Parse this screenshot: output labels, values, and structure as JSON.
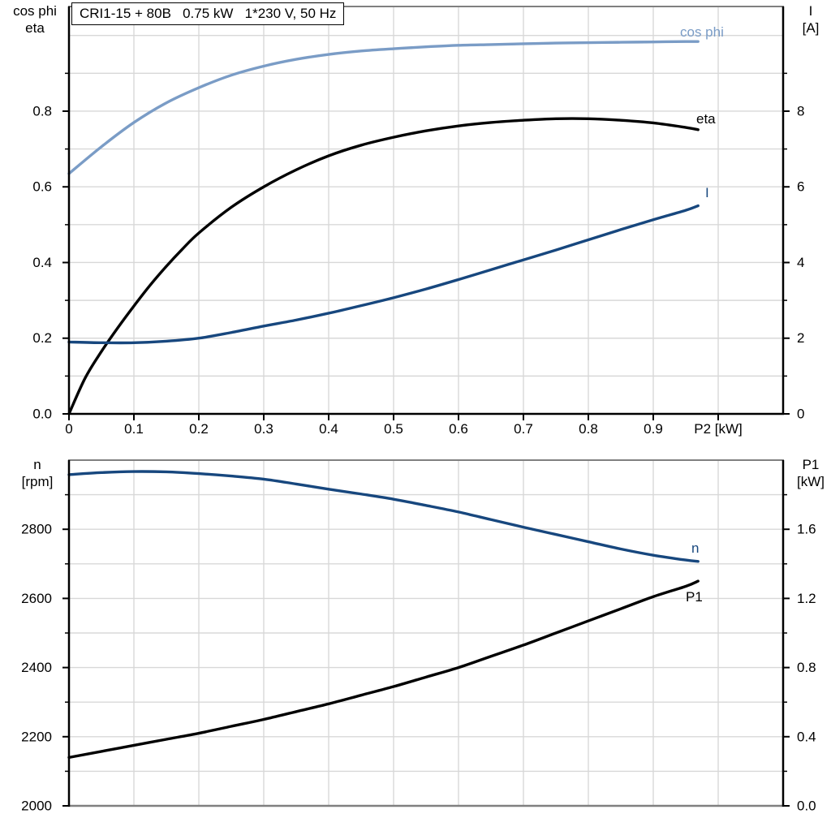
{
  "title_box": {
    "text": "CRI1-15 + 80B   0.75 kW   1*230 V, 50 Hz"
  },
  "colors": {
    "black": "#000000",
    "light_blue": "#7a9cc6",
    "dark_blue": "#17477e",
    "grid": "#d8d8d8",
    "frame_gray": "#808080",
    "background": "#ffffff"
  },
  "headers": {
    "top_left_line1": "cos phi",
    "top_left_line2": "eta",
    "top_right_line1": "I",
    "top_right_line2": "[A]",
    "bottom_left_line1": "n",
    "bottom_left_line2": "[rpm]",
    "bottom_right_line1": "P1",
    "bottom_right_line2": "[kW]"
  },
  "chart_data": [
    {
      "type": "line",
      "title": "CRI1-15 + 80B   0.75 kW   1*230 V, 50 Hz",
      "xlabel": "P2 [kW]",
      "x_axis": {
        "range": [
          0,
          1.1
        ],
        "ticks": [
          0,
          0.1,
          0.2,
          0.3,
          0.4,
          0.5,
          0.6,
          0.7,
          0.8,
          0.9,
          1.0
        ],
        "tick_labels": [
          "0",
          "0.1",
          "0.2",
          "0.3",
          "0.4",
          "0.5",
          "0.6",
          "0.7",
          "0.8",
          "0.9",
          "P2 [kW]"
        ],
        "grid_values": [
          0.1,
          0.2,
          0.3,
          0.4,
          0.5,
          0.6,
          0.7,
          0.8,
          0.9,
          1.0
        ]
      },
      "left_axis": {
        "title": [
          "cos phi",
          "eta"
        ],
        "range": [
          0,
          1.0766
        ],
        "major_ticks": [
          0,
          0.2,
          0.4,
          0.6,
          0.8
        ],
        "tick_labels": [
          "0.0",
          "0.2",
          "0.4",
          "0.6",
          "0.8"
        ],
        "minor_ticks": [
          0.1,
          0.3,
          0.5,
          0.7,
          0.9
        ],
        "grid_values": [
          0.1,
          0.2,
          0.3,
          0.4,
          0.5,
          0.6,
          0.7,
          0.8,
          0.9,
          1.0
        ]
      },
      "right_axis": {
        "title": [
          "I",
          "[A]"
        ],
        "range": [
          0,
          10.766
        ],
        "major_ticks": [
          0,
          2,
          4,
          6,
          8
        ],
        "tick_labels": [
          "0",
          "2",
          "4",
          "6",
          "8"
        ],
        "minor_ticks": [
          1,
          3,
          5,
          7,
          9
        ]
      },
      "series": [
        {
          "name": "cos phi",
          "axis": "left",
          "color": "#7a9cc6",
          "label": {
            "text": "cos phi",
            "x": 838,
            "y": 45,
            "anchor": "start"
          },
          "points": [
            [
              0,
              0.635
            ],
            [
              0.05,
              0.706
            ],
            [
              0.1,
              0.77
            ],
            [
              0.15,
              0.822
            ],
            [
              0.2,
              0.862
            ],
            [
              0.25,
              0.895
            ],
            [
              0.3,
              0.919
            ],
            [
              0.35,
              0.937
            ],
            [
              0.4,
              0.95
            ],
            [
              0.45,
              0.959
            ],
            [
              0.5,
              0.965
            ],
            [
              0.55,
              0.97
            ],
            [
              0.6,
              0.974
            ],
            [
              0.65,
              0.976
            ],
            [
              0.7,
              0.978
            ],
            [
              0.75,
              0.98
            ],
            [
              0.8,
              0.981
            ],
            [
              0.85,
              0.982
            ],
            [
              0.9,
              0.983
            ],
            [
              0.95,
              0.984
            ],
            [
              0.969,
              0.984
            ]
          ]
        },
        {
          "name": "eta",
          "axis": "left",
          "color": "#000000",
          "label": {
            "text": "eta",
            "x": 858,
            "y": 152,
            "anchor": "start"
          },
          "points": [
            [
              0,
              0.0
            ],
            [
              0.025,
              0.095
            ],
            [
              0.05,
              0.165
            ],
            [
              0.075,
              0.227
            ],
            [
              0.1,
              0.285
            ],
            [
              0.125,
              0.34
            ],
            [
              0.15,
              0.39
            ],
            [
              0.175,
              0.436
            ],
            [
              0.2,
              0.478
            ],
            [
              0.25,
              0.546
            ],
            [
              0.3,
              0.6
            ],
            [
              0.35,
              0.645
            ],
            [
              0.4,
              0.682
            ],
            [
              0.45,
              0.71
            ],
            [
              0.5,
              0.731
            ],
            [
              0.55,
              0.748
            ],
            [
              0.6,
              0.761
            ],
            [
              0.65,
              0.77
            ],
            [
              0.7,
              0.776
            ],
            [
              0.75,
              0.78
            ],
            [
              0.8,
              0.78
            ],
            [
              0.85,
              0.776
            ],
            [
              0.9,
              0.769
            ],
            [
              0.95,
              0.757
            ],
            [
              0.969,
              0.751
            ]
          ]
        },
        {
          "name": "I",
          "axis": "right",
          "color": "#17477e",
          "label": {
            "text": "I",
            "x": 869,
            "y": 243,
            "anchor": "start"
          },
          "points": [
            [
              0,
              1.9
            ],
            [
              0.05,
              1.88
            ],
            [
              0.1,
              1.88
            ],
            [
              0.15,
              1.92
            ],
            [
              0.2,
              2.0
            ],
            [
              0.25,
              2.15
            ],
            [
              0.3,
              2.32
            ],
            [
              0.35,
              2.48
            ],
            [
              0.4,
              2.66
            ],
            [
              0.45,
              2.86
            ],
            [
              0.5,
              3.07
            ],
            [
              0.55,
              3.3
            ],
            [
              0.6,
              3.55
            ],
            [
              0.65,
              3.81
            ],
            [
              0.7,
              4.07
            ],
            [
              0.75,
              4.33
            ],
            [
              0.8,
              4.6
            ],
            [
              0.85,
              4.87
            ],
            [
              0.9,
              5.13
            ],
            [
              0.95,
              5.38
            ],
            [
              0.969,
              5.5
            ]
          ]
        }
      ]
    },
    {
      "type": "line",
      "title": "",
      "xlabel": "",
      "x_axis": {
        "range": [
          0,
          1.1
        ],
        "ticks": [],
        "tick_labels": [],
        "grid_values": [
          0.1,
          0.2,
          0.3,
          0.4,
          0.5,
          0.6,
          0.7,
          0.8,
          0.9,
          1.0
        ]
      },
      "left_axis": {
        "title": [
          "n",
          "[rpm]"
        ],
        "range": [
          2000,
          3000
        ],
        "major_ticks": [
          2000,
          2200,
          2400,
          2600,
          2800
        ],
        "tick_labels": [
          "2000",
          "2200",
          "2400",
          "2600",
          "2800"
        ],
        "minor_ticks": [
          2100,
          2300,
          2500,
          2700,
          2900
        ],
        "grid_values": [
          2100,
          2200,
          2300,
          2400,
          2500,
          2600,
          2700,
          2800,
          2900
        ]
      },
      "right_axis": {
        "title": [
          "P1",
          "[kW]"
        ],
        "range": [
          0,
          2.0
        ],
        "major_ticks": [
          0,
          0.4,
          0.8,
          1.2,
          1.6
        ],
        "tick_labels": [
          "0.0",
          "0.4",
          "0.8",
          "1.2",
          "1.6"
        ],
        "minor_ticks": [
          0.2,
          0.6,
          1.0,
          1.4,
          1.8
        ]
      },
      "series": [
        {
          "name": "n",
          "axis": "left",
          "color": "#17477e",
          "label": {
            "text": "n",
            "x": 852,
            "y": 681,
            "anchor": "start"
          },
          "points": [
            [
              0,
              2958
            ],
            [
              0.05,
              2964
            ],
            [
              0.1,
              2967
            ],
            [
              0.15,
              2966
            ],
            [
              0.2,
              2961
            ],
            [
              0.25,
              2954
            ],
            [
              0.3,
              2945
            ],
            [
              0.35,
              2931
            ],
            [
              0.4,
              2916
            ],
            [
              0.45,
              2902
            ],
            [
              0.5,
              2887
            ],
            [
              0.55,
              2869
            ],
            [
              0.6,
              2850
            ],
            [
              0.65,
              2828
            ],
            [
              0.7,
              2806
            ],
            [
              0.75,
              2785
            ],
            [
              0.8,
              2764
            ],
            [
              0.85,
              2743
            ],
            [
              0.9,
              2725
            ],
            [
              0.95,
              2711
            ],
            [
              0.969,
              2707
            ]
          ]
        },
        {
          "name": "P1",
          "axis": "right",
          "color": "#000000",
          "label": {
            "text": "P1",
            "x": 845,
            "y": 741,
            "anchor": "start"
          },
          "points": [
            [
              0,
              0.28
            ],
            [
              0.05,
              0.315
            ],
            [
              0.1,
              0.35
            ],
            [
              0.15,
              0.385
            ],
            [
              0.2,
              0.42
            ],
            [
              0.25,
              0.46
            ],
            [
              0.3,
              0.5
            ],
            [
              0.35,
              0.545
            ],
            [
              0.4,
              0.59
            ],
            [
              0.45,
              0.64
            ],
            [
              0.5,
              0.69
            ],
            [
              0.55,
              0.745
            ],
            [
              0.6,
              0.8
            ],
            [
              0.65,
              0.865
            ],
            [
              0.7,
              0.93
            ],
            [
              0.75,
              1.0
            ],
            [
              0.8,
              1.07
            ],
            [
              0.85,
              1.14
            ],
            [
              0.9,
              1.21
            ],
            [
              0.95,
              1.27
            ],
            [
              0.969,
              1.3
            ]
          ]
        }
      ]
    }
  ]
}
